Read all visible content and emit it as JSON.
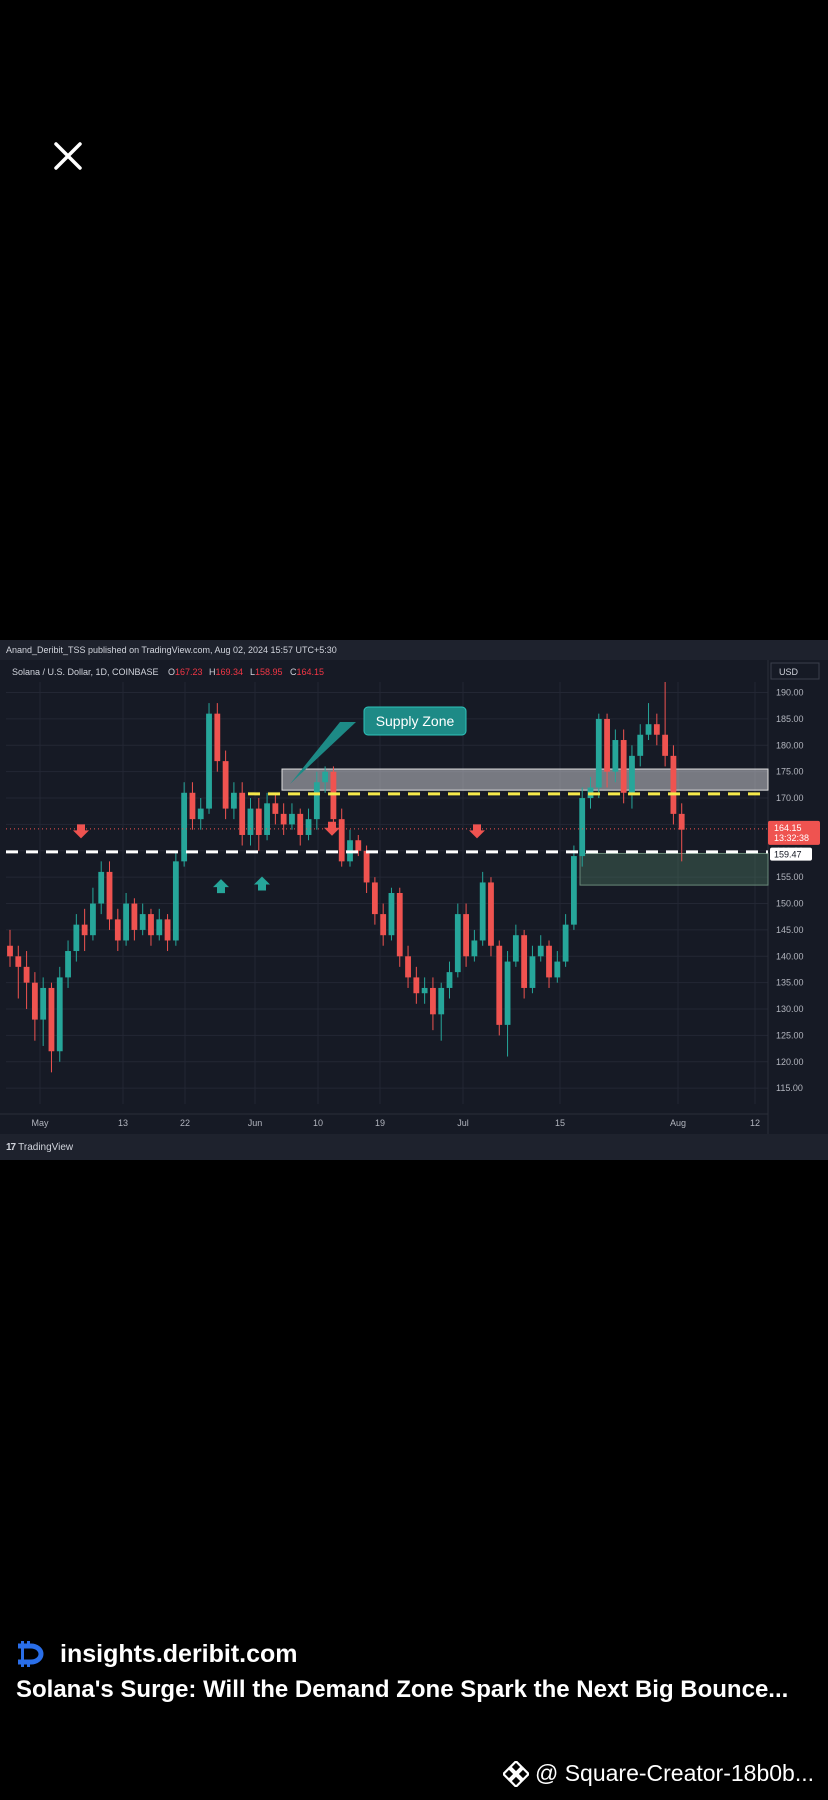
{
  "header": {
    "close_icon": "close-icon"
  },
  "chart_header": {
    "publisher_line": "Anand_Deribit_TSS published on TradingView.com, Aug 02, 2024 15:57 UTC+5:30",
    "symbol": "Solana / U.S. Dollar, 1D, COINBASE",
    "o_label": "O",
    "o_value": "167.23",
    "h_label": "H",
    "h_value": "169.34",
    "l_label": "L",
    "l_value": "158.95",
    "c_label": "C",
    "c_value": "164.15",
    "currency": "USD"
  },
  "chart_data": {
    "type": "candlestick",
    "x_ticks": [
      "May",
      "13",
      "22",
      "Jun",
      "10",
      "19",
      "Jul",
      "15",
      "Aug",
      "12"
    ],
    "y_ticks": [
      "190.00",
      "185.00",
      "180.00",
      "175.00",
      "170.00",
      "165.00",
      "160.00",
      "155.00",
      "150.00",
      "145.00",
      "140.00",
      "135.00",
      "130.00",
      "125.00",
      "120.00",
      "115.00"
    ],
    "ylim": [
      112,
      192
    ],
    "price_label": "164.15",
    "countdown_label": "13:32:38",
    "level_label": "159.47",
    "annotation": "Supply Zone",
    "supply_zone": [
      171.5,
      175.5
    ],
    "demand_zone": [
      153.5,
      159.5
    ],
    "dashed_white": 159.8,
    "dashed_yellow": 170.8,
    "candles": [
      [
        142,
        140,
        145,
        138
      ],
      [
        140,
        138,
        142,
        132
      ],
      [
        138,
        135,
        141,
        130
      ],
      [
        135,
        128,
        137,
        124
      ],
      [
        128,
        134,
        136,
        123
      ],
      [
        134,
        122,
        135,
        118
      ],
      [
        122,
        136,
        138,
        120
      ],
      [
        136,
        141,
        143,
        134
      ],
      [
        141,
        146,
        148,
        139
      ],
      [
        146,
        144,
        149,
        141
      ],
      [
        144,
        150,
        153,
        143
      ],
      [
        150,
        156,
        158,
        148
      ],
      [
        156,
        147,
        158,
        145
      ],
      [
        147,
        143,
        149,
        141
      ],
      [
        143,
        150,
        152,
        142
      ],
      [
        150,
        145,
        151,
        143
      ],
      [
        145,
        148,
        150,
        144
      ],
      [
        148,
        144,
        149,
        142
      ],
      [
        144,
        147,
        149,
        143
      ],
      [
        147,
        143,
        148,
        141
      ],
      [
        143,
        158,
        160,
        142
      ],
      [
        158,
        171,
        173,
        157
      ],
      [
        171,
        166,
        173,
        164
      ],
      [
        166,
        168,
        170,
        164
      ],
      [
        168,
        186,
        188,
        167
      ],
      [
        186,
        177,
        188,
        175
      ],
      [
        177,
        168,
        179,
        166
      ],
      [
        168,
        171,
        173,
        166
      ],
      [
        171,
        163,
        173,
        161
      ],
      [
        163,
        168,
        170,
        161
      ],
      [
        168,
        163,
        170,
        160
      ],
      [
        163,
        169,
        171,
        162
      ],
      [
        169,
        167,
        171,
        165
      ],
      [
        167,
        165,
        169,
        163
      ],
      [
        165,
        167,
        169,
        164
      ],
      [
        167,
        163,
        168,
        161
      ],
      [
        163,
        166,
        168,
        162
      ],
      [
        166,
        173,
        175,
        164
      ],
      [
        173,
        175,
        176,
        171
      ],
      [
        175,
        166,
        176,
        164
      ],
      [
        166,
        158,
        168,
        157
      ],
      [
        158,
        162,
        164,
        157
      ],
      [
        162,
        160,
        163,
        159
      ],
      [
        160,
        154,
        161,
        152
      ],
      [
        154,
        148,
        155,
        146
      ],
      [
        148,
        144,
        150,
        142
      ],
      [
        144,
        152,
        153,
        143
      ],
      [
        152,
        140,
        153,
        138
      ],
      [
        140,
        136,
        142,
        134
      ],
      [
        136,
        133,
        138,
        131
      ],
      [
        133,
        134,
        136,
        131
      ],
      [
        134,
        129,
        136,
        126
      ],
      [
        129,
        134,
        135,
        124
      ],
      [
        134,
        137,
        139,
        132
      ],
      [
        137,
        148,
        150,
        136
      ],
      [
        148,
        140,
        150,
        138
      ],
      [
        140,
        143,
        145,
        139
      ],
      [
        143,
        154,
        156,
        142
      ],
      [
        154,
        142,
        155,
        140
      ],
      [
        142,
        127,
        143,
        125
      ],
      [
        127,
        139,
        141,
        121
      ],
      [
        139,
        144,
        146,
        138
      ],
      [
        144,
        134,
        145,
        132
      ],
      [
        134,
        140,
        142,
        133
      ],
      [
        140,
        142,
        144,
        139
      ],
      [
        142,
        136,
        143,
        134
      ],
      [
        136,
        139,
        141,
        135
      ],
      [
        139,
        146,
        148,
        138
      ],
      [
        146,
        159,
        161,
        145
      ],
      [
        159,
        170,
        172,
        157
      ],
      [
        170,
        172,
        174,
        168
      ],
      [
        172,
        185,
        186,
        170
      ],
      [
        185,
        175,
        186,
        172
      ],
      [
        175,
        181,
        183,
        173
      ],
      [
        181,
        171,
        183,
        169
      ],
      [
        171,
        178,
        180,
        168
      ],
      [
        178,
        182,
        184,
        176
      ],
      [
        182,
        184,
        188,
        181
      ],
      [
        184,
        182,
        186,
        180
      ],
      [
        182,
        178,
        192,
        176
      ],
      [
        178,
        167,
        180,
        165
      ],
      [
        167,
        164,
        169,
        158
      ]
    ]
  },
  "chart_footer": {
    "brand": "TradingView"
  },
  "footer": {
    "site": "insights.deribit.com",
    "title": "Solana's Surge: Will the Demand Zone Spark the Next Big Bounce...",
    "creator": "@ Square-Creator-18b0b..."
  }
}
